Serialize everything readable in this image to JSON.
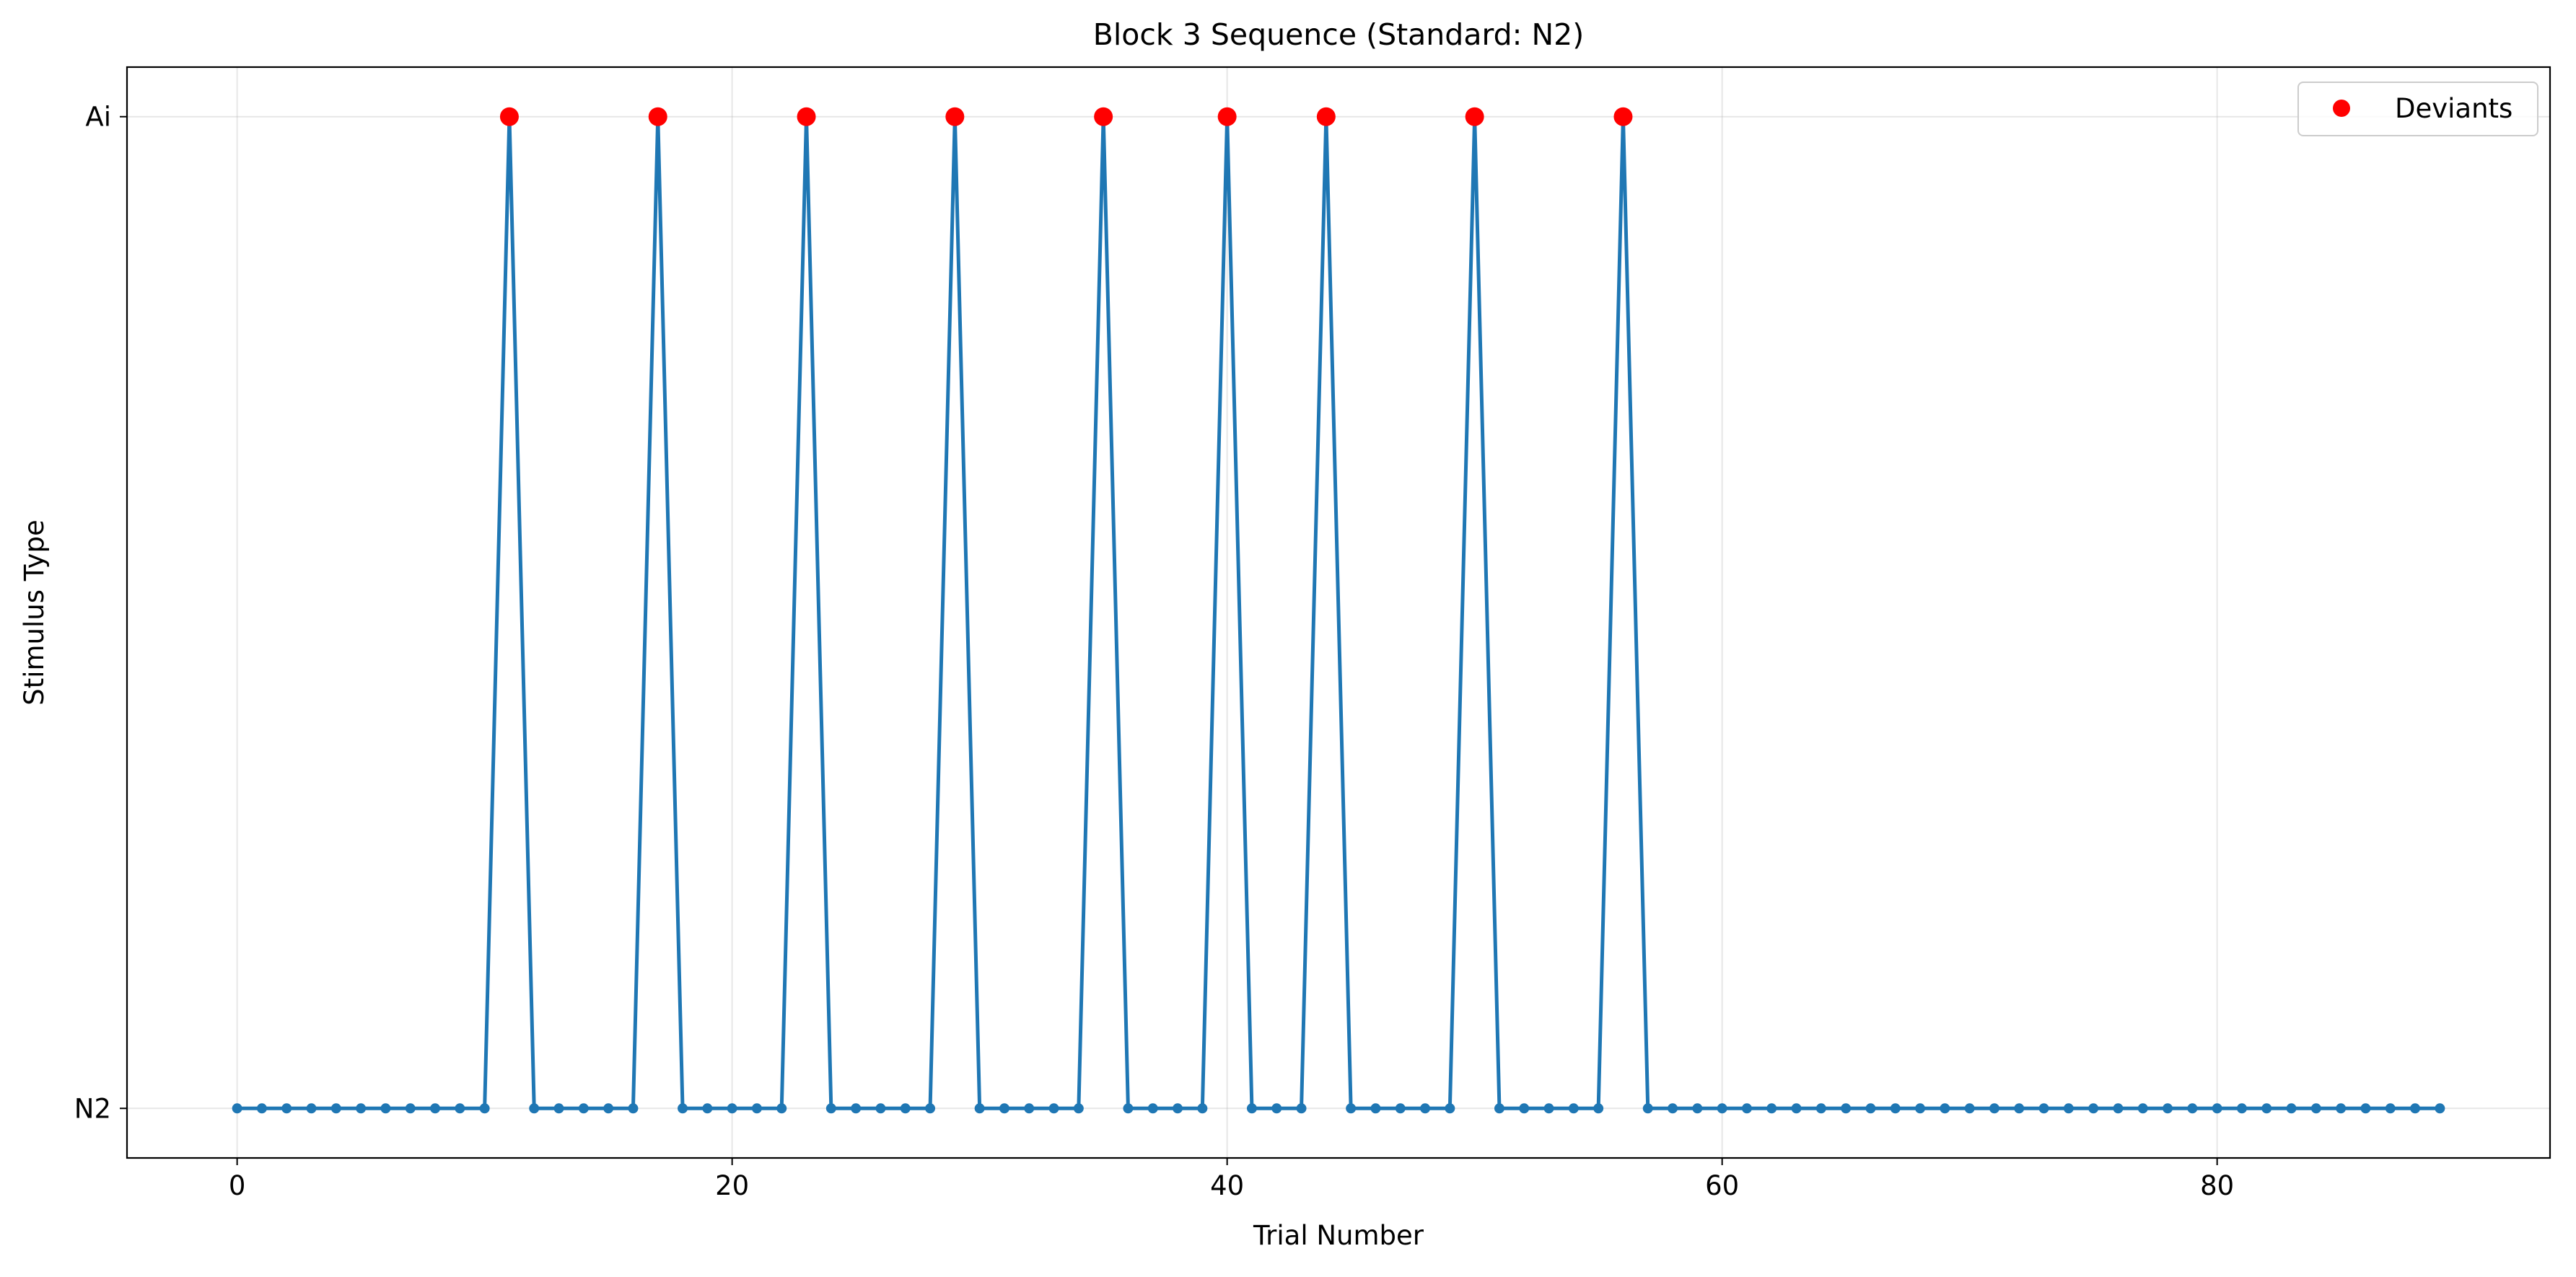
{
  "chart_data": {
    "type": "line",
    "title": "Block 3 Sequence (Standard: N2)",
    "xlabel": "Trial Number",
    "ylabel": "Stimulus Type",
    "xlim": [
      -4.45,
      93.45
    ],
    "ylim": [
      -0.05,
      1.05
    ],
    "x_ticks": [
      0,
      20,
      40,
      60,
      80
    ],
    "y_ticks": [
      {
        "value": 0,
        "label": "N2"
      },
      {
        "value": 1,
        "label": "Ai"
      }
    ],
    "grid": true,
    "legend": {
      "position": "top-right",
      "entries": [
        "Deviants"
      ]
    },
    "colors": {
      "sequence": "#1f77b4",
      "deviants": "#ff0000"
    },
    "series": [
      {
        "x": [
          0,
          1,
          2,
          3,
          4,
          5,
          6,
          7,
          8,
          9,
          10,
          11,
          12,
          13,
          14,
          15,
          16,
          17,
          18,
          19,
          20,
          21,
          22,
          23,
          24,
          25,
          26,
          27,
          28,
          29,
          30,
          31,
          32,
          33,
          34,
          35,
          36,
          37,
          38,
          39,
          40,
          41,
          42,
          43,
          44,
          45,
          46,
          47,
          48,
          49,
          50,
          51,
          52,
          53,
          54,
          55,
          56,
          57,
          58,
          59,
          60,
          61,
          62,
          63,
          64,
          65,
          66,
          67,
          68,
          69,
          70,
          71,
          72,
          73,
          74,
          75,
          76,
          77,
          78,
          79,
          80,
          81,
          82,
          83,
          84,
          85,
          86,
          87,
          88,
          89
        ],
        "values": [
          0,
          0,
          0,
          0,
          0,
          0,
          0,
          0,
          0,
          0,
          0,
          1,
          0,
          0,
          0,
          0,
          0,
          1,
          0,
          0,
          0,
          0,
          0,
          1,
          0,
          0,
          0,
          0,
          0,
          1,
          0,
          0,
          0,
          0,
          0,
          1,
          0,
          0,
          0,
          0,
          1,
          0,
          0,
          0,
          1,
          0,
          0,
          0,
          0,
          0,
          1,
          0,
          0,
          0,
          0,
          0,
          1,
          0,
          0,
          0,
          0,
          0,
          0,
          0,
          0,
          0,
          0,
          0,
          0,
          0,
          0,
          0,
          0,
          0,
          0,
          0,
          0,
          0,
          0,
          0,
          0,
          0,
          0,
          0,
          0,
          0,
          0,
          0,
          0,
          0
        ]
      },
      {
        "name": "Deviants",
        "x": [
          11,
          17,
          23,
          29,
          35,
          40,
          44,
          50,
          56
        ],
        "values": [
          1,
          1,
          1,
          1,
          1,
          1,
          1,
          1,
          1
        ]
      }
    ]
  }
}
